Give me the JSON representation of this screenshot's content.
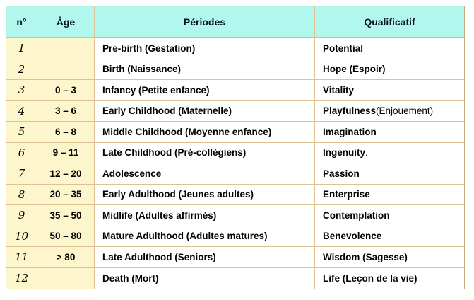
{
  "table_title": "Life periods table",
  "colors": {
    "header_bg": "#b2f7ee",
    "label_column_bg": "#fdf5cc",
    "grid_border": "#dfc194",
    "outer_border": "#c6a97c",
    "text": "#000000",
    "page_bg": "#ffffff"
  },
  "header": {
    "col_n": "n°",
    "col_age": "Âge",
    "col_periodes": "Périodes",
    "col_qualificatif": "Qualificatif"
  },
  "rows": [
    {
      "n": "1",
      "age": "",
      "periode": "Pre-birth (Gestation)",
      "qualificatif": "Potential",
      "qualificatif_suffix": ""
    },
    {
      "n": "2",
      "age": "",
      "periode": "Birth (Naissance)",
      "qualificatif": "Hope (Espoir)",
      "qualificatif_suffix": ""
    },
    {
      "n": "3",
      "age": "0 – 3",
      "periode": "Infancy (Petite enfance)",
      "qualificatif": "Vitality",
      "qualificatif_suffix": ""
    },
    {
      "n": "4",
      "age": "3 – 6",
      "periode": "Early Childhood (Maternelle)",
      "qualificatif": "Playfulness",
      "qualificatif_suffix": " (Enjouement)"
    },
    {
      "n": "5",
      "age": "6 – 8",
      "periode": "Middle Childhood (Moyenne enfance)",
      "qualificatif": "Imagination",
      "qualificatif_suffix": ""
    },
    {
      "n": "6",
      "age": "9 – 11",
      "periode": "Late Childhood (Pré-collègiens)",
      "qualificatif": "Ingenuity",
      "qualificatif_suffix": "."
    },
    {
      "n": "7",
      "age": "12 – 20",
      "periode": "Adolescence",
      "qualificatif": "Passion",
      "qualificatif_suffix": ""
    },
    {
      "n": "8",
      "age": "20 – 35",
      "periode": "Early Adulthood (Jeunes adultes)",
      "qualificatif": "Enterprise",
      "qualificatif_suffix": ""
    },
    {
      "n": "9",
      "age": "35 – 50",
      "periode": "Midlife (Adultes affirmés)",
      "qualificatif": "Contemplation",
      "qualificatif_suffix": ""
    },
    {
      "n": "10",
      "age": "50 – 80",
      "periode": "Mature Adulthood (Adultes matures)",
      "qualificatif": "Benevolence",
      "qualificatif_suffix": ""
    },
    {
      "n": "11",
      "age": "> 80",
      "periode": "Late Adulthood (Seniors)",
      "qualificatif": "Wisdom (Sagesse)",
      "qualificatif_suffix": ""
    },
    {
      "n": "12",
      "age": "",
      "periode": "Death (Mort)",
      "qualificatif": "Life (Leçon de la vie)",
      "qualificatif_suffix": ""
    }
  ]
}
